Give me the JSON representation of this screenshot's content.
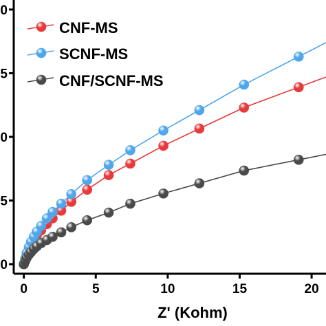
{
  "chart_data": {
    "type": "scatter",
    "xlabel": "Z' (Kohm)",
    "ylabel": "",
    "xlim": [
      -0.7,
      21.0
    ],
    "ylim": [
      -0.15,
      4.15
    ],
    "x_ticks": [
      0,
      5,
      10,
      15,
      20
    ],
    "x_tick_labels": [
      "0",
      "5",
      "10",
      "15",
      "20"
    ],
    "y_ticks": [
      0,
      1,
      2,
      3,
      4
    ],
    "y_tick_labels": [
      "0",
      "5",
      "0",
      "5",
      "0"
    ],
    "grid": false,
    "legend_position": "top-left",
    "series": [
      {
        "name": "CNF-MS",
        "color": "#e8393b",
        "x": [
          0,
          0.1,
          0.2,
          0.35,
          0.5,
          0.7,
          0.9,
          1.2,
          1.6,
          2.0,
          2.6,
          3.3,
          4.4,
          5.9,
          7.4,
          9.7,
          12.2,
          15.3,
          19.1
        ],
        "y": [
          0,
          0.08,
          0.16,
          0.24,
          0.31,
          0.38,
          0.45,
          0.53,
          0.63,
          0.72,
          0.84,
          0.98,
          1.17,
          1.4,
          1.58,
          1.86,
          2.13,
          2.46,
          2.78
        ]
      },
      {
        "name": "SCNF-MS",
        "color": "#4fa6ea",
        "x": [
          0,
          0.1,
          0.2,
          0.35,
          0.5,
          0.7,
          0.9,
          1.2,
          1.6,
          2.0,
          2.6,
          3.3,
          4.4,
          5.9,
          7.4,
          9.7,
          12.2,
          15.3,
          19.1
        ],
        "y": [
          0,
          0.09,
          0.18,
          0.27,
          0.35,
          0.43,
          0.51,
          0.6,
          0.72,
          0.82,
          0.95,
          1.1,
          1.32,
          1.56,
          1.79,
          2.1,
          2.42,
          2.82,
          3.26
        ]
      },
      {
        "name": "CNF/SCNF-MS",
        "color": "#4a4a4a",
        "x": [
          0,
          0.1,
          0.2,
          0.35,
          0.5,
          0.7,
          0.9,
          1.2,
          1.6,
          2.0,
          2.6,
          3.3,
          4.4,
          5.9,
          7.4,
          9.7,
          12.2,
          15.3,
          19.1
        ],
        "y": [
          0,
          0.05,
          0.1,
          0.15,
          0.19,
          0.24,
          0.28,
          0.33,
          0.38,
          0.43,
          0.5,
          0.58,
          0.69,
          0.81,
          0.95,
          1.11,
          1.27,
          1.47,
          1.64
        ]
      }
    ]
  }
}
